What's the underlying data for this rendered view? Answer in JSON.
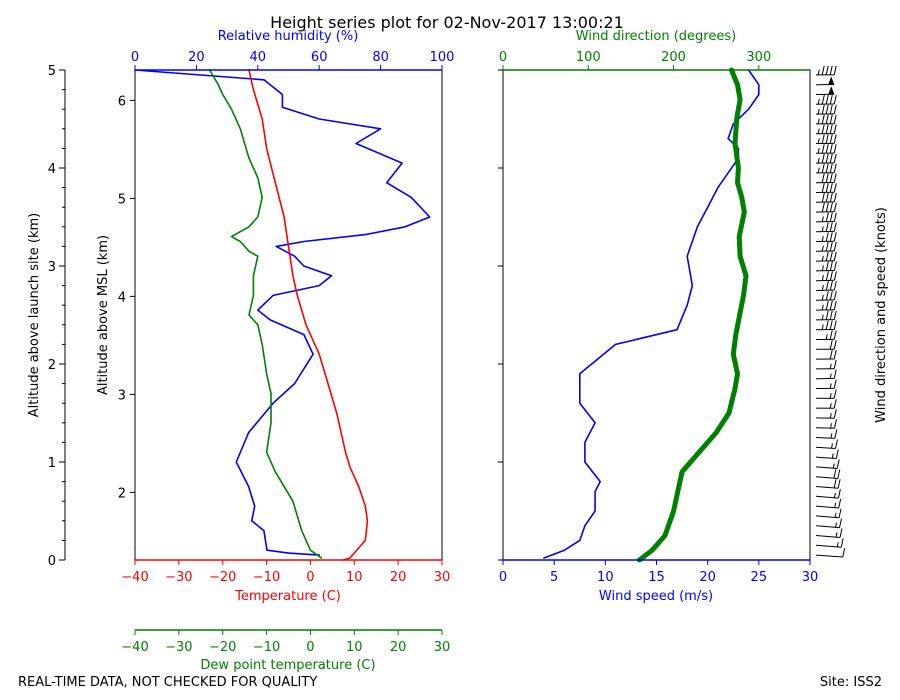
{
  "title": "Height series plot for 02-Nov-2017 13:00:21",
  "footer": {
    "left": "REAL-TIME DATA, NOT CHECKED FOR QUALITY",
    "right": "Site: ISS2"
  },
  "colors": {
    "temperature": "#ff0000",
    "dewpoint": "#008000",
    "rh": "#0000ff",
    "wind_speed": "#0000ff",
    "wind_dir": "#008000",
    "barbs": "#000000",
    "frame": "#000000"
  },
  "chart_data": [
    {
      "type": "line",
      "id": "thermo",
      "axes": {
        "left_outer": {
          "label": "Altitude above launch site (km)",
          "range": [
            0,
            5
          ],
          "ticks": [
            0,
            1,
            2,
            3,
            4,
            5
          ]
        },
        "left_inner": {
          "label": "Altitude above MSL (km)",
          "ticks": [
            2,
            3,
            4,
            5,
            6
          ]
        },
        "top": {
          "label": "Relative humidity (%)",
          "range": [
            0,
            100
          ],
          "ticks": [
            0,
            20,
            40,
            60,
            80,
            100
          ]
        },
        "bottom": {
          "label": "Temperature (C)",
          "range": [
            -40,
            30
          ],
          "ticks": [
            -40,
            -30,
            -20,
            -10,
            0,
            10,
            20,
            30
          ]
        },
        "bottom2": {
          "label": "Dew point temperature (C)",
          "range": [
            -40,
            30
          ],
          "ticks": [
            -40,
            -30,
            -20,
            -10,
            0,
            10,
            20,
            30
          ]
        }
      },
      "series": [
        {
          "name": "Temperature",
          "x_axis": "temperature",
          "points": [
            [
              7.5,
              0
            ],
            [
              9,
              0.02
            ],
            [
              12.5,
              0.2
            ],
            [
              13,
              0.4
            ],
            [
              12.5,
              0.55
            ],
            [
              11,
              0.75
            ],
            [
              9,
              0.95
            ],
            [
              8,
              1.1
            ],
            [
              6,
              1.5
            ],
            [
              4,
              1.8
            ],
            [
              2,
              2.1
            ],
            [
              -1,
              2.4
            ],
            [
              -3,
              2.7
            ],
            [
              -4,
              2.9
            ],
            [
              -5,
              3.2
            ],
            [
              -6,
              3.5
            ],
            [
              -8,
              3.85
            ],
            [
              -10,
              4.2
            ],
            [
              -11,
              4.5
            ],
            [
              -13,
              4.8
            ],
            [
              -14,
              5.0
            ]
          ]
        },
        {
          "name": "Dew point",
          "x_axis": "dewpoint",
          "points": [
            [
              2.5,
              0.02
            ],
            [
              0,
              0.1
            ],
            [
              -2,
              0.3
            ],
            [
              -4,
              0.6
            ],
            [
              -8,
              0.9
            ],
            [
              -10,
              1.1
            ],
            [
              -9,
              1.4
            ],
            [
              -9,
              1.7
            ],
            [
              -10,
              1.9
            ],
            [
              -11,
              2.2
            ],
            [
              -12,
              2.4
            ],
            [
              -14,
              2.5
            ],
            [
              -13,
              2.7
            ],
            [
              -13,
              2.9
            ],
            [
              -12,
              3.1
            ],
            [
              -14,
              3.15
            ],
            [
              -16,
              3.25
            ],
            [
              -18,
              3.3
            ],
            [
              -14,
              3.4
            ],
            [
              -12,
              3.5
            ],
            [
              -11,
              3.7
            ],
            [
              -12,
              3.9
            ],
            [
              -14,
              4.1
            ],
            [
              -16,
              4.4
            ],
            [
              -18,
              4.6
            ],
            [
              -20,
              4.75
            ],
            [
              -21,
              4.85
            ],
            [
              -23,
              5.0
            ]
          ]
        },
        {
          "name": "Relative humidity",
          "x_axis": "rh",
          "points": [
            [
              60,
              0.05
            ],
            [
              50,
              0.07
            ],
            [
              43,
              0.1
            ],
            [
              42,
              0.3
            ],
            [
              38,
              0.4
            ],
            [
              39,
              0.55
            ],
            [
              37,
              0.75
            ],
            [
              33,
              1.0
            ],
            [
              37,
              1.3
            ],
            [
              45,
              1.6
            ],
            [
              52,
              1.8
            ],
            [
              58,
              2.1
            ],
            [
              55,
              2.3
            ],
            [
              44,
              2.45
            ],
            [
              40,
              2.55
            ],
            [
              45,
              2.7
            ],
            [
              60,
              2.8
            ],
            [
              64,
              2.9
            ],
            [
              55,
              3.0
            ],
            [
              52,
              3.1
            ],
            [
              46,
              3.2
            ],
            [
              55,
              3.25
            ],
            [
              75,
              3.32
            ],
            [
              88,
              3.4
            ],
            [
              96,
              3.5
            ],
            [
              90,
              3.7
            ],
            [
              82,
              3.85
            ],
            [
              87,
              4.05
            ],
            [
              72,
              4.25
            ],
            [
              80,
              4.4
            ],
            [
              60,
              4.5
            ],
            [
              48,
              4.62
            ],
            [
              48,
              4.75
            ],
            [
              42,
              4.9
            ],
            [
              0,
              5.0
            ]
          ]
        },
        {
          "name": "Wind speed",
          "x_axis": "wind_speed",
          "points": [
            [
              4,
              0.02
            ],
            [
              6,
              0.1
            ],
            [
              7.5,
              0.2
            ],
            [
              8,
              0.35
            ],
            [
              9,
              0.5
            ],
            [
              9,
              0.7
            ],
            [
              9.5,
              0.8
            ],
            [
              8,
              1.0
            ],
            [
              8,
              1.2
            ],
            [
              9,
              1.4
            ],
            [
              7.5,
              1.6
            ],
            [
              7.5,
              1.9
            ],
            [
              11,
              2.2
            ],
            [
              17,
              2.35
            ],
            [
              18,
              2.6
            ],
            [
              18.5,
              2.8
            ],
            [
              18,
              3.1
            ],
            [
              19,
              3.4
            ],
            [
              20,
              3.6
            ],
            [
              21,
              3.8
            ],
            [
              22,
              3.95
            ],
            [
              23,
              4.1
            ],
            [
              23,
              4.2
            ],
            [
              22,
              4.3
            ],
            [
              22.5,
              4.45
            ],
            [
              24,
              4.6
            ],
            [
              25,
              4.75
            ],
            [
              25,
              4.85
            ],
            [
              24,
              5.0
            ]
          ]
        },
        {
          "name": "Wind direction",
          "x_axis": "wind_dir",
          "points": [
            [
              160,
              0.0
            ],
            [
              175,
              0.1
            ],
            [
              190,
              0.25
            ],
            [
              200,
              0.5
            ],
            [
              205,
              0.7
            ],
            [
              210,
              0.9
            ],
            [
              220,
              1.0
            ],
            [
              250,
              1.3
            ],
            [
              265,
              1.5
            ],
            [
              272,
              1.75
            ],
            [
              275,
              1.9
            ],
            [
              270,
              2.1
            ],
            [
              273,
              2.3
            ],
            [
              282,
              2.7
            ],
            [
              285,
              2.9
            ],
            [
              278,
              3.1
            ],
            [
              277,
              3.3
            ],
            [
              283,
              3.55
            ],
            [
              280,
              3.7
            ],
            [
              275,
              3.85
            ],
            [
              276,
              4.0
            ],
            [
              272,
              4.25
            ],
            [
              274,
              4.5
            ],
            [
              278,
              4.7
            ],
            [
              275,
              4.85
            ],
            [
              268,
              5.0
            ]
          ]
        }
      ]
    },
    {
      "type": "line",
      "id": "wind",
      "axes": {
        "top": {
          "label": "Wind direction (degrees)",
          "range": [
            0,
            360
          ],
          "ticks": [
            0,
            100,
            200,
            300
          ]
        },
        "bottom": {
          "label": "Wind speed (m/s)",
          "range": [
            0,
            30
          ],
          "ticks": [
            0,
            5,
            10,
            15,
            20,
            25,
            30
          ]
        },
        "right": {
          "label": "Wind direction and speed (knots)"
        }
      }
    }
  ]
}
